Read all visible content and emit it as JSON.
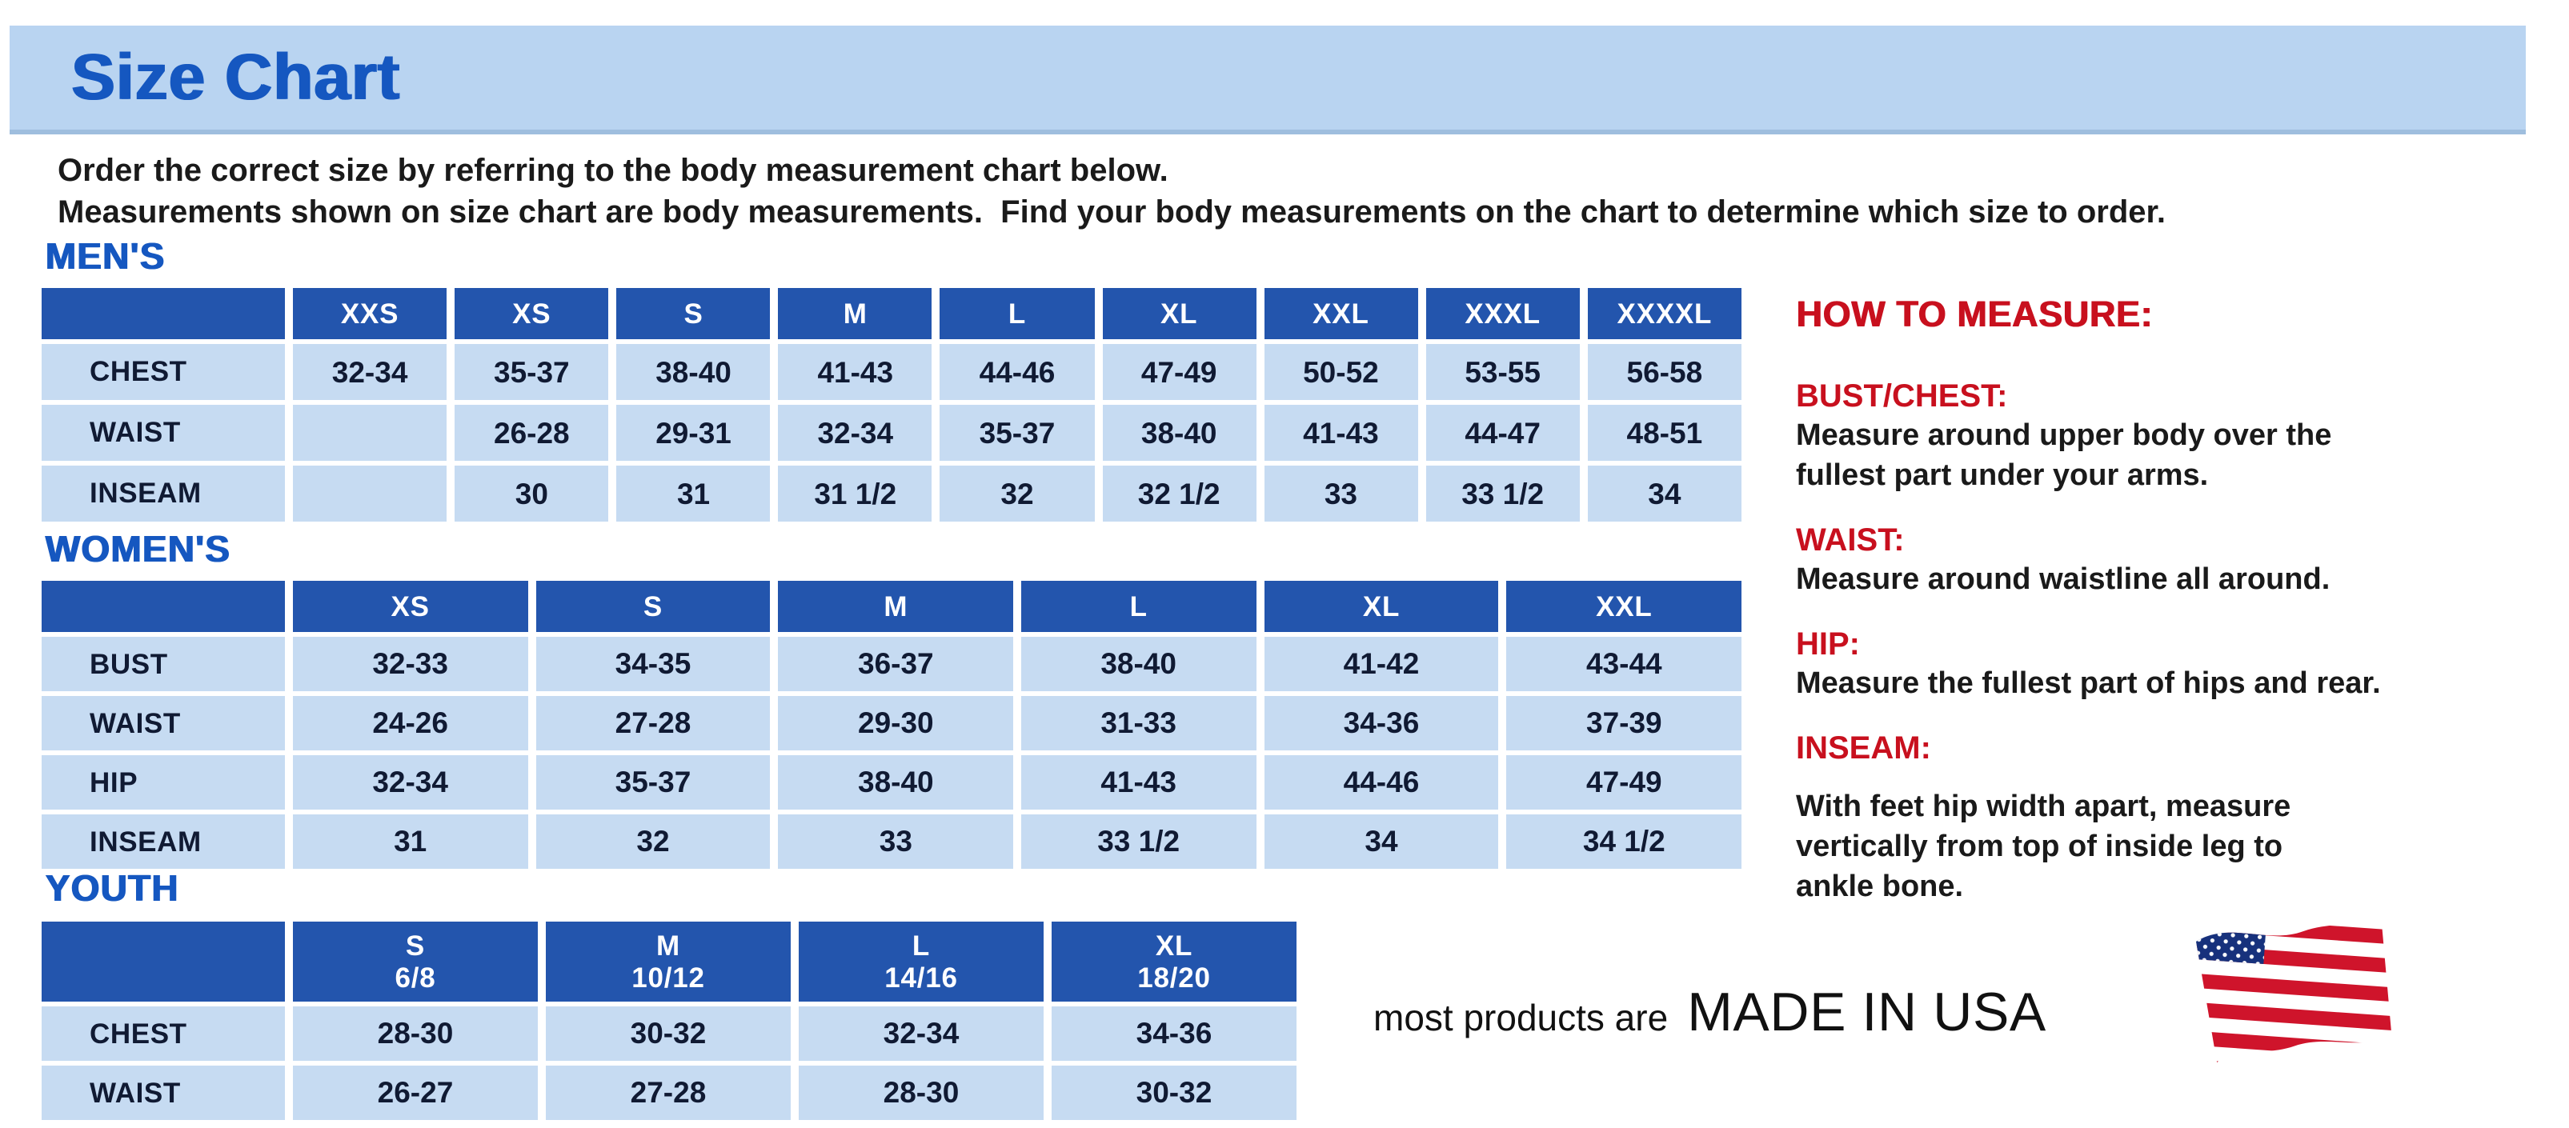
{
  "colors": {
    "banner_blue": "#b9d4f1",
    "heading_blue": "#1557c0",
    "header_blue": "#2355ad",
    "cell_blue": "#c6dbf2",
    "red": "#c8101e",
    "text_dark": "#101a33"
  },
  "banner": {
    "title": "Size Chart"
  },
  "intro": {
    "line1": "Order the correct size by referring to the body measurement chart below.",
    "line2": "Measurements shown on size chart are body measurements.  Find your body measurements on the chart to determine which size to order."
  },
  "tables": {
    "mens": {
      "heading": "MEN'S",
      "columns": [
        {
          "label": "XXS"
        },
        {
          "label": "XS"
        },
        {
          "label": "S"
        },
        {
          "label": "M"
        },
        {
          "label": "L"
        },
        {
          "label": "XL"
        },
        {
          "label": "XXL"
        },
        {
          "label": "XXXL"
        },
        {
          "label": "XXXXL"
        }
      ],
      "rows": [
        {
          "label": "CHEST",
          "values": [
            "32-34",
            "35-37",
            "38-40",
            "41-43",
            "44-46",
            "47-49",
            "50-52",
            "53-55",
            "56-58"
          ]
        },
        {
          "label": "WAIST",
          "values": [
            "",
            "26-28",
            "29-31",
            "32-34",
            "35-37",
            "38-40",
            "41-43",
            "44-47",
            "48-51"
          ]
        },
        {
          "label": "INSEAM",
          "values": [
            "",
            "30",
            "31",
            "31 1/2",
            "32",
            "32 1/2",
            "33",
            "33 1/2",
            "34"
          ]
        }
      ]
    },
    "womens": {
      "heading": "WOMEN'S",
      "columns": [
        {
          "label": "XS"
        },
        {
          "label": "S"
        },
        {
          "label": "M"
        },
        {
          "label": "L"
        },
        {
          "label": "XL"
        },
        {
          "label": "XXL"
        }
      ],
      "rows": [
        {
          "label": "BUST",
          "values": [
            "32-33",
            "34-35",
            "36-37",
            "38-40",
            "41-42",
            "43-44"
          ]
        },
        {
          "label": "WAIST",
          "values": [
            "24-26",
            "27-28",
            "29-30",
            "31-33",
            "34-36",
            "37-39"
          ]
        },
        {
          "label": "HIP",
          "values": [
            "32-34",
            "35-37",
            "38-40",
            "41-43",
            "44-46",
            "47-49"
          ]
        },
        {
          "label": "INSEAM",
          "values": [
            "31",
            "32",
            "33",
            "33 1/2",
            "34",
            "34 1/2"
          ]
        }
      ]
    },
    "youth": {
      "heading": "YOUTH",
      "columns": [
        {
          "label": "S",
          "sub": "6/8"
        },
        {
          "label": "M",
          "sub": "10/12"
        },
        {
          "label": "L",
          "sub": "14/16"
        },
        {
          "label": "XL",
          "sub": "18/20"
        }
      ],
      "rows": [
        {
          "label": "CHEST",
          "values": [
            "28-30",
            "30-32",
            "32-34",
            "34-36"
          ]
        },
        {
          "label": "WAIST",
          "values": [
            "26-27",
            "27-28",
            "28-30",
            "30-32"
          ]
        }
      ]
    }
  },
  "how_to_measure": {
    "heading": "HOW TO MEASURE:",
    "sections": [
      {
        "label": "BUST/CHEST:",
        "lines": [
          "Measure around upper body over the",
          "fullest part under your arms."
        ]
      },
      {
        "label": "WAIST:",
        "lines": [
          "Measure around waistline all around."
        ]
      },
      {
        "label": "HIP:",
        "lines": [
          "Measure the fullest part of hips and rear."
        ]
      },
      {
        "label": "INSEAM:",
        "lines": [
          "With feet hip width apart, measure",
          "vertically from top of inside leg to",
          "ankle bone."
        ]
      }
    ]
  },
  "footer": {
    "prefix": "most products are",
    "made_in": "MADE IN USA",
    "flag_icon": "usa-flag-icon"
  }
}
